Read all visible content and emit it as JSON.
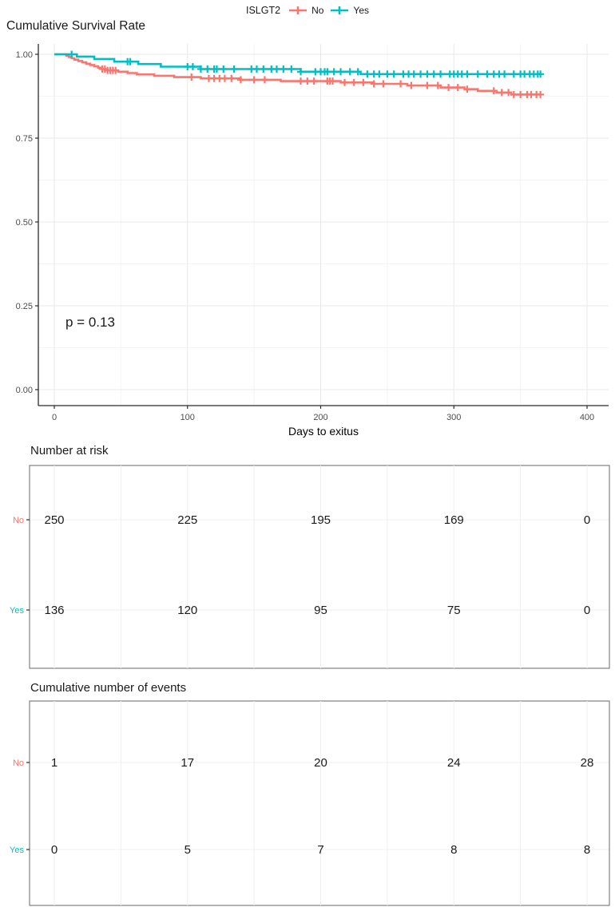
{
  "legend": {
    "title": "ISLGT2"
  },
  "chart_data": {
    "type": "line",
    "subtype": "kaplan-meier-step",
    "title": "Cumulative Survival Rate",
    "xlabel": "Days to exitus",
    "ylabel": "",
    "pvalue_text": "p = 0.13",
    "xlim": [
      0,
      415
    ],
    "ylim": [
      0,
      1
    ],
    "xticks": [
      0,
      100,
      200,
      300,
      400
    ],
    "ytick_labels": [
      "1.00",
      "0.75",
      "0.50",
      "0.25",
      "0.00"
    ],
    "ytick_values": [
      1.0,
      0.75,
      0.5,
      0.25,
      0.0
    ],
    "minor_x_days": [
      50,
      150,
      250,
      350
    ],
    "minor_y_values": [
      0.875,
      0.625,
      0.375,
      0.125
    ],
    "grid": true,
    "legend_position": "top",
    "groups": [
      {
        "name": "No",
        "color": "#F8766D",
        "steps": [
          [
            0,
            1
          ],
          [
            8,
            1
          ],
          [
            9,
            0.996
          ],
          [
            11,
            0.992
          ],
          [
            13,
            0.988
          ],
          [
            15,
            0.984
          ],
          [
            18,
            0.98
          ],
          [
            21,
            0.976
          ],
          [
            24,
            0.972
          ],
          [
            27,
            0.968
          ],
          [
            30,
            0.964
          ],
          [
            33,
            0.96
          ],
          [
            36,
            0.956
          ],
          [
            40,
            0.952
          ],
          [
            48,
            0.948
          ],
          [
            55,
            0.944
          ],
          [
            62,
            0.94
          ],
          [
            75,
            0.936
          ],
          [
            90,
            0.932
          ],
          [
            110,
            0.928
          ],
          [
            140,
            0.924
          ],
          [
            170,
            0.92
          ],
          [
            215,
            0.916
          ],
          [
            240,
            0.912
          ],
          [
            265,
            0.907
          ],
          [
            290,
            0.901
          ],
          [
            308,
            0.896
          ],
          [
            318,
            0.891
          ],
          [
            332,
            0.886
          ],
          [
            343,
            0.88
          ],
          [
            365,
            0.88
          ]
        ],
        "censor_days": [
          36,
          38,
          40,
          42,
          44,
          46,
          103,
          116,
          120,
          124,
          128,
          133,
          140,
          150,
          158,
          185,
          190,
          195,
          205,
          207,
          209,
          218,
          225,
          232,
          240,
          247,
          260,
          268,
          280,
          288,
          296,
          303,
          310,
          330,
          336,
          341,
          345,
          350,
          355,
          358,
          362,
          365
        ]
      },
      {
        "name": "Yes",
        "color": "#00BFC4",
        "steps": [
          [
            0,
            1
          ],
          [
            16,
            1
          ],
          [
            17,
            0.993
          ],
          [
            30,
            0.986
          ],
          [
            45,
            0.978
          ],
          [
            63,
            0.971
          ],
          [
            80,
            0.963
          ],
          [
            110,
            0.956
          ],
          [
            185,
            0.948
          ],
          [
            230,
            0.941
          ],
          [
            365,
            0.941
          ]
        ],
        "censor_days": [
          13,
          55,
          57,
          100,
          104,
          110,
          115,
          120,
          122,
          127,
          135,
          148,
          152,
          157,
          163,
          167,
          172,
          178,
          185,
          196,
          200,
          203,
          205,
          210,
          215,
          222,
          228,
          235,
          240,
          244,
          250,
          255,
          262,
          266,
          270,
          275,
          280,
          285,
          290,
          297,
          300,
          303,
          306,
          310,
          318,
          325,
          330,
          334,
          338,
          345,
          350,
          353,
          357,
          360,
          363,
          365
        ]
      }
    ]
  },
  "tables": [
    {
      "title": "Number at risk",
      "tick_days": [
        0,
        100,
        200,
        300,
        400
      ],
      "rows": [
        {
          "label": "No",
          "color": "#F8766D",
          "values": [
            "250",
            "225",
            "195",
            "169",
            "0"
          ]
        },
        {
          "label": "Yes",
          "color": "#00BFC4",
          "values": [
            "136",
            "120",
            "95",
            "75",
            "0"
          ]
        }
      ]
    },
    {
      "title": "Cumulative number of events",
      "tick_days": [
        0,
        100,
        200,
        300,
        400
      ],
      "rows": [
        {
          "label": "No",
          "color": "#F8766D",
          "values": [
            "1",
            "17",
            "20",
            "24",
            "28"
          ]
        },
        {
          "label": "Yes",
          "color": "#00BFC4",
          "values": [
            "0",
            "5",
            "7",
            "8",
            "8"
          ]
        }
      ]
    }
  ]
}
